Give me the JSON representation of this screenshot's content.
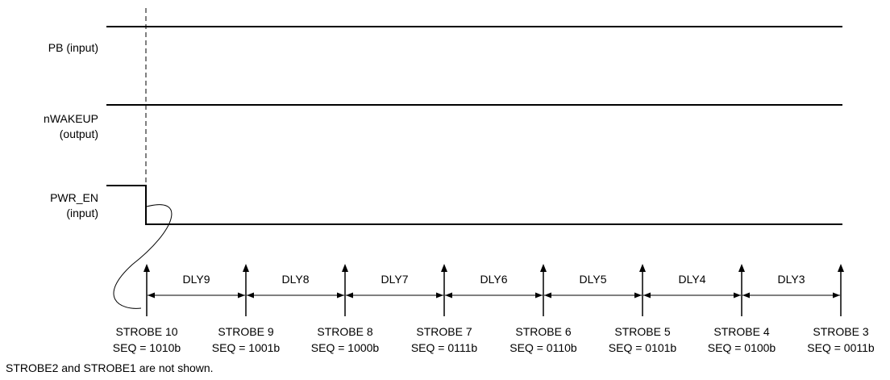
{
  "signals": [
    {
      "name": "PB",
      "lines": [
        "PB (input)"
      ],
      "level": "high"
    },
    {
      "name": "nWAKEUP",
      "lines": [
        "nWAKEUP",
        "(output)"
      ],
      "level": "high"
    },
    {
      "name": "PWR_EN",
      "lines": [
        "PWR_EN",
        "(input)"
      ],
      "level": "high-to-low"
    }
  ],
  "strobes": [
    {
      "label": "STROBE 10",
      "seq": "SEQ = 1010b"
    },
    {
      "label": "STROBE 9",
      "seq": "SEQ = 1001b"
    },
    {
      "label": "STROBE 8",
      "seq": "SEQ = 1000b"
    },
    {
      "label": "STROBE 7",
      "seq": "SEQ = 0111b"
    },
    {
      "label": "STROBE 6",
      "seq": "SEQ = 0110b"
    },
    {
      "label": "STROBE 5",
      "seq": "SEQ = 0101b"
    },
    {
      "label": "STROBE 4",
      "seq": "SEQ = 0100b"
    },
    {
      "label": "STROBE 3",
      "seq": "SEQ = 0011b"
    }
  ],
  "delays": [
    "DLY9",
    "DLY8",
    "DLY7",
    "DLY6",
    "DLY5",
    "DLY4",
    "DLY3"
  ],
  "footnote": "STROBE2 and STROBE1 are not shown."
}
